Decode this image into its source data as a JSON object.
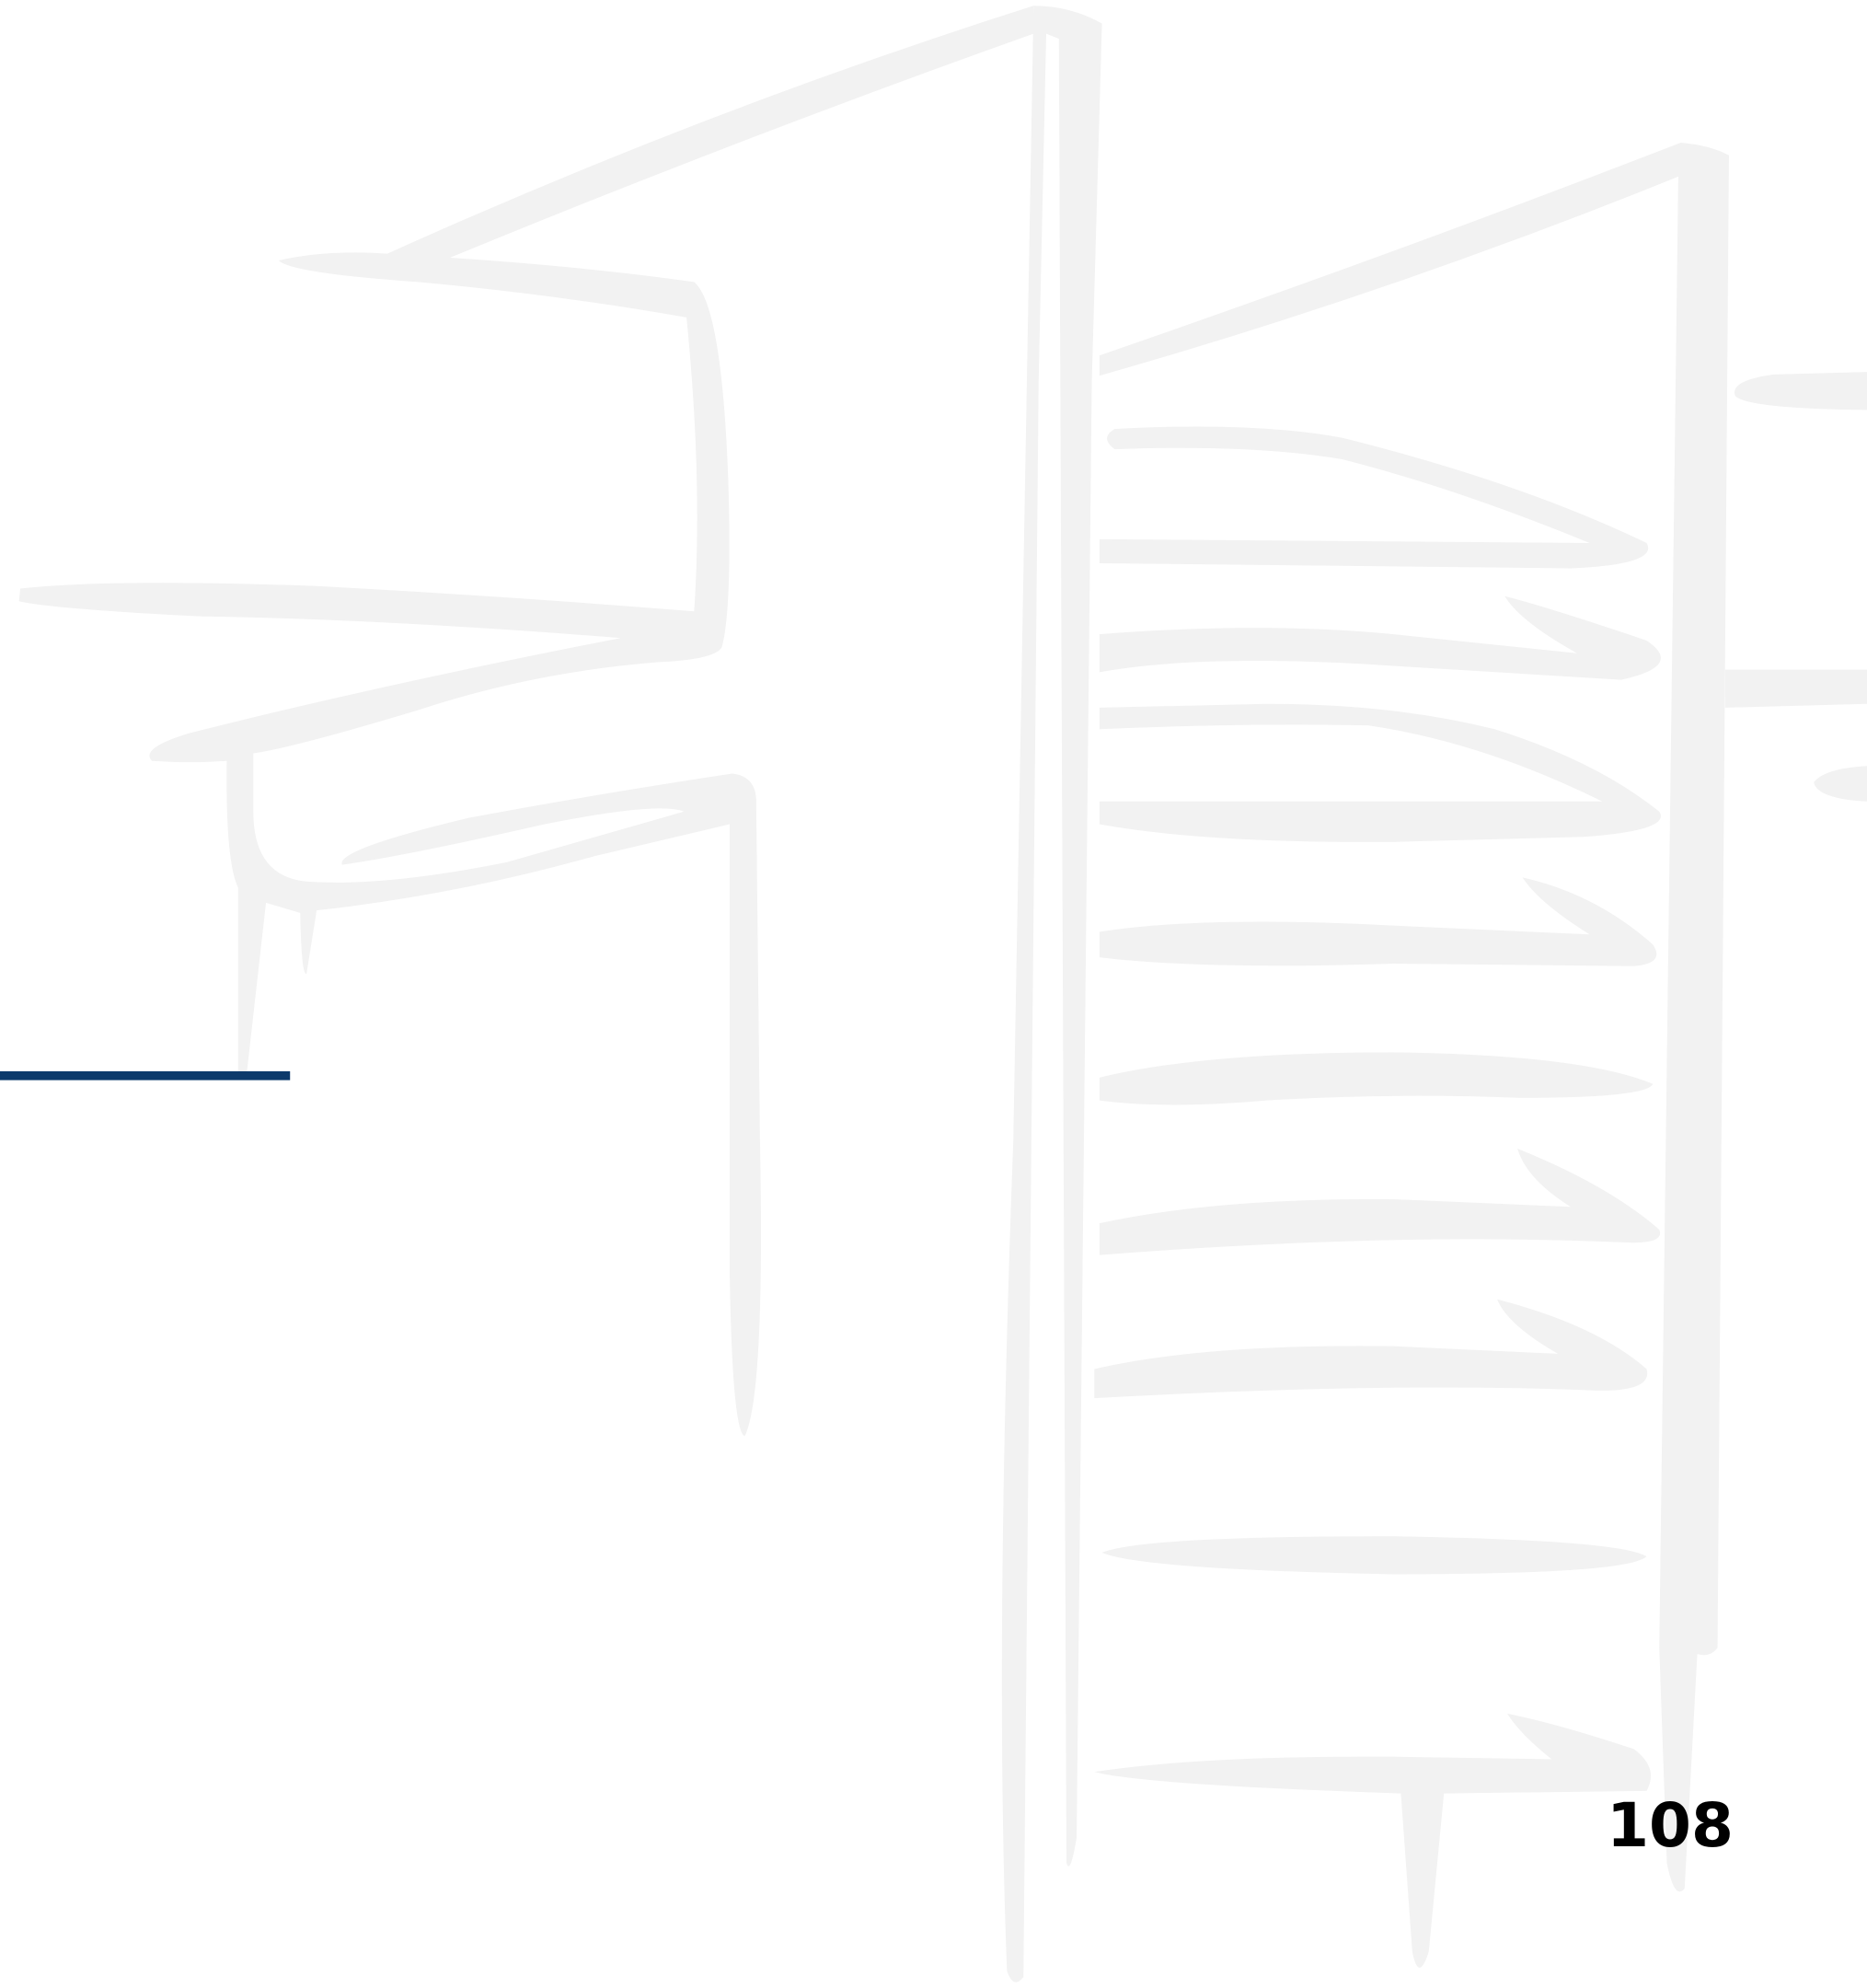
{
  "page_number": "108"
}
